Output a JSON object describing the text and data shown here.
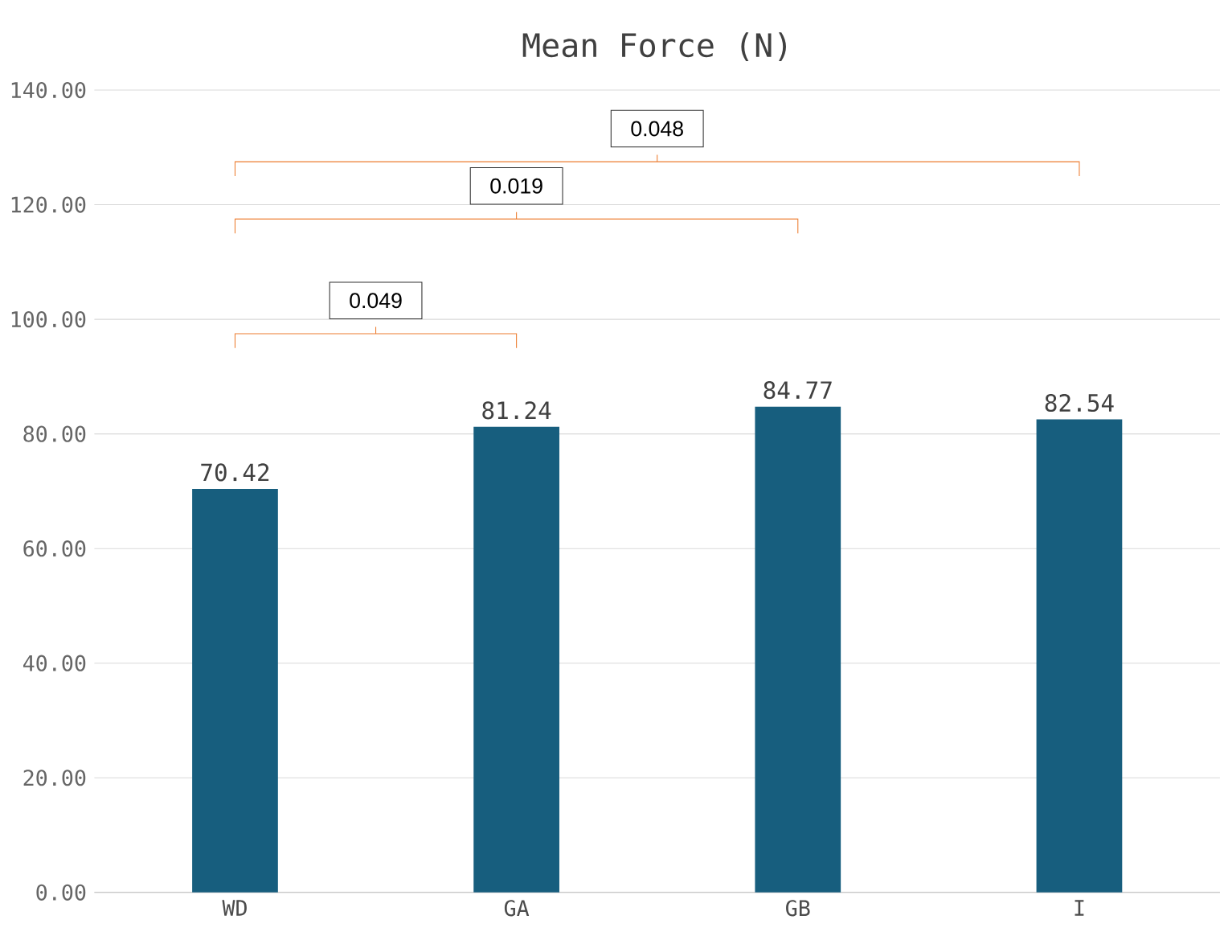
{
  "chart_data": {
    "type": "bar",
    "title": "Mean Force (N)",
    "categories": [
      "WD",
      "GA",
      "GB",
      "I"
    ],
    "values": [
      70.42,
      81.24,
      84.77,
      82.54
    ],
    "color": "#175e7e",
    "ylim": [
      0,
      140
    ],
    "yticks": [
      {
        "value": 0,
        "label": "0.00"
      },
      {
        "value": 20,
        "label": "20.00"
      },
      {
        "value": 40,
        "label": "40.00"
      },
      {
        "value": 60,
        "label": "60.00"
      },
      {
        "value": 80,
        "label": "80.00"
      },
      {
        "value": 100,
        "label": "100.00"
      },
      {
        "value": 120,
        "label": "120.00"
      },
      {
        "value": 140,
        "label": "140.00"
      }
    ],
    "grid": "y",
    "data_labels": true,
    "annotations": [
      "0.049",
      "0.019",
      "0.048"
    ]
  }
}
